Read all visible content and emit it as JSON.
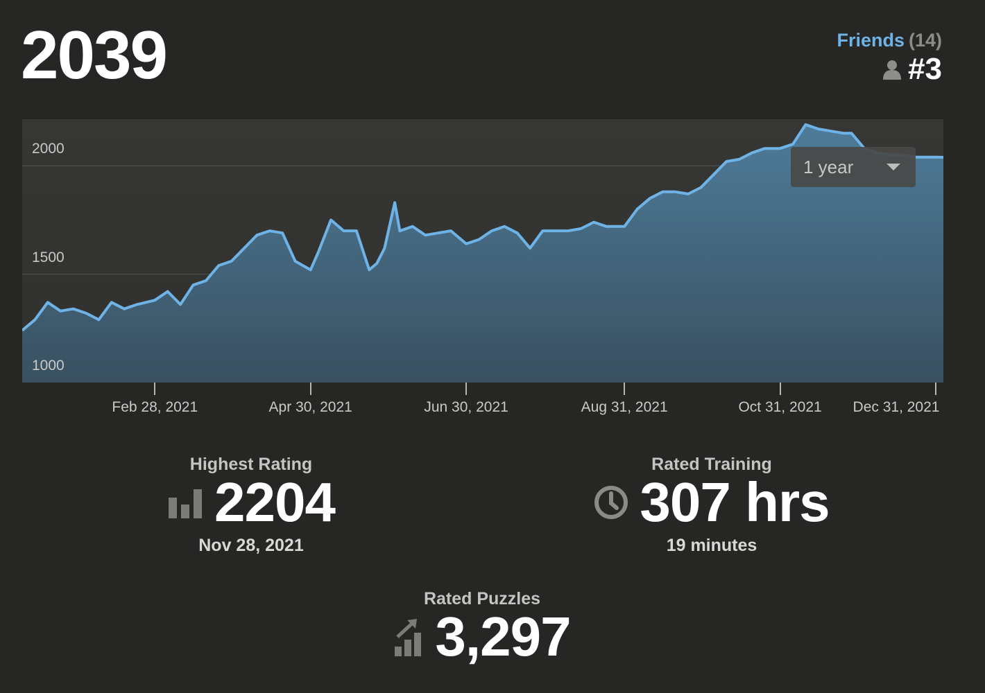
{
  "rating": "2039",
  "friends": {
    "label": "Friends",
    "count": "(14)",
    "rank": "#3"
  },
  "range_select": {
    "label": "1 year"
  },
  "colors": {
    "background": "#262725",
    "line": "#6fb3e6",
    "fill": "#4f7f9f",
    "accent_link": "#6fb3e6"
  },
  "chart_data": {
    "type": "area",
    "ylim": [
      1000,
      2215
    ],
    "yticks": [
      "2000",
      "1500",
      "1000"
    ],
    "ytick_values": [
      2000,
      1500,
      1000
    ],
    "xticks": [
      "Feb 28, 2021",
      "Apr 30, 2021",
      "Jun 30, 2021",
      "Aug 31, 2021",
      "Oct 31, 2021",
      "Dec 31, 2021"
    ],
    "xlim": [
      "2021-01-07",
      "2022-01-03"
    ],
    "x": [
      "2021-01-07",
      "2021-01-12",
      "2021-01-17",
      "2021-01-22",
      "2021-01-27",
      "2021-02-01",
      "2021-02-06",
      "2021-02-11",
      "2021-02-16",
      "2021-02-21",
      "2021-02-28",
      "2021-03-05",
      "2021-03-10",
      "2021-03-15",
      "2021-03-20",
      "2021-03-25",
      "2021-03-30",
      "2021-04-04",
      "2021-04-09",
      "2021-04-14",
      "2021-04-19",
      "2021-04-24",
      "2021-04-30",
      "2021-05-03",
      "2021-05-08",
      "2021-05-13",
      "2021-05-18",
      "2021-05-23",
      "2021-05-26",
      "2021-05-29",
      "2021-06-02",
      "2021-06-04",
      "2021-06-09",
      "2021-06-14",
      "2021-06-19",
      "2021-06-24",
      "2021-06-30",
      "2021-07-05",
      "2021-07-10",
      "2021-07-15",
      "2021-07-20",
      "2021-07-25",
      "2021-07-30",
      "2021-08-04",
      "2021-08-09",
      "2021-08-14",
      "2021-08-19",
      "2021-08-24",
      "2021-08-31",
      "2021-09-05",
      "2021-09-10",
      "2021-09-15",
      "2021-09-20",
      "2021-09-25",
      "2021-09-30",
      "2021-10-05",
      "2021-10-10",
      "2021-10-15",
      "2021-10-20",
      "2021-10-25",
      "2021-10-31",
      "2021-11-05",
      "2021-11-10",
      "2021-11-15",
      "2021-11-20",
      "2021-11-25",
      "2021-11-28",
      "2021-12-03",
      "2021-12-08",
      "2021-12-13",
      "2021-12-18",
      "2021-12-23",
      "2021-12-31",
      "2022-01-03"
    ],
    "y": [
      1240,
      1290,
      1370,
      1330,
      1340,
      1320,
      1290,
      1370,
      1340,
      1360,
      1380,
      1420,
      1360,
      1450,
      1470,
      1540,
      1560,
      1620,
      1680,
      1700,
      1690,
      1560,
      1520,
      1600,
      1750,
      1700,
      1700,
      1520,
      1550,
      1620,
      1830,
      1700,
      1720,
      1680,
      1690,
      1700,
      1640,
      1660,
      1700,
      1720,
      1690,
      1620,
      1700,
      1700,
      1700,
      1710,
      1740,
      1720,
      1720,
      1800,
      1850,
      1880,
      1880,
      1870,
      1900,
      1960,
      2020,
      2030,
      2060,
      2080,
      2080,
      2100,
      2190,
      2170,
      2160,
      2150,
      2150,
      2080,
      2060,
      2050,
      2050,
      2040,
      2040,
      2039
    ]
  },
  "stats": {
    "highest": {
      "title": "Highest Rating",
      "value": "2204",
      "sub": "Nov 28, 2021"
    },
    "training": {
      "title": "Rated Training",
      "value": "307 hrs",
      "sub": "19 minutes"
    },
    "puzzles": {
      "title": "Rated Puzzles",
      "value": "3,297"
    }
  }
}
